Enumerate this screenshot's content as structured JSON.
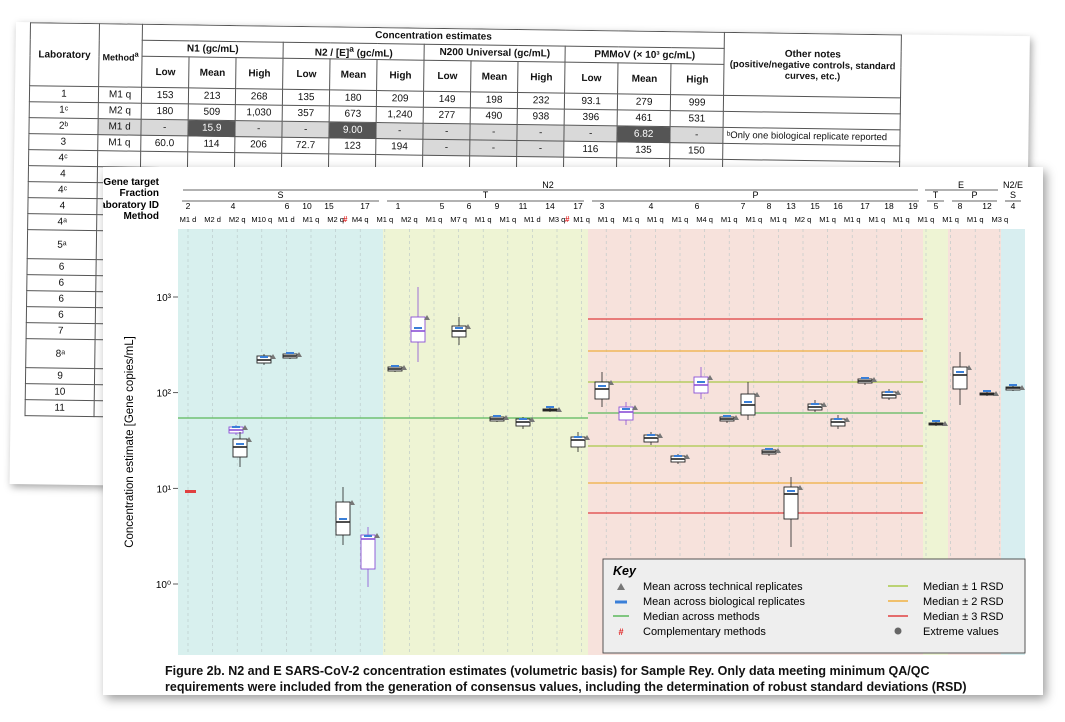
{
  "table": {
    "header": {
      "laboratory": "Laboratory",
      "method": "Method",
      "method_sup": "a",
      "concentration_estimates": "Concentration estimates",
      "groups": [
        "N1 (gc/mL)",
        "N2 / [E]",
        "N200 Universal (gc/mL)",
        "PMMoV (× 10³ gc/mL)"
      ],
      "n2_sup": "a",
      "n2_units": " (gc/mL)",
      "sub": [
        "Low",
        "Mean",
        "High"
      ],
      "other_notes": "Other notes",
      "other_notes_detail": "(positive/negative controls, standard curves, etc.)"
    },
    "rows": [
      {
        "lab": "1",
        "method": "M1 q",
        "n1": [
          "153",
          "213",
          "268"
        ],
        "n2": [
          "135",
          "180",
          "209"
        ],
        "n200": [
          "149",
          "198",
          "232"
        ],
        "pmmov": [
          "93.1",
          "279",
          "999"
        ],
        "note": ""
      },
      {
        "lab": "1ᶜ",
        "method": "M2 q",
        "n1": [
          "180",
          "509",
          "1,030"
        ],
        "n2": [
          "357",
          "673",
          "1,240"
        ],
        "n200": [
          "277",
          "490",
          "938"
        ],
        "pmmov": [
          "396",
          "461",
          "531"
        ],
        "note": ""
      },
      {
        "lab": "2ᵇ",
        "method": "M1 d",
        "n1": [
          "-",
          "15.9",
          "-"
        ],
        "n2": [
          "-",
          "9.00",
          "-"
        ],
        "n200": [
          "-",
          "-",
          "-"
        ],
        "pmmov": [
          "-",
          "6.82",
          "-"
        ],
        "note": "ᵇOnly one biological replicate reported",
        "grey": true
      },
      {
        "lab": "3",
        "method": "M1 q",
        "n1": [
          "60.0",
          "114",
          "206"
        ],
        "n2": [
          "72.7",
          "123",
          "194"
        ],
        "n200": [
          "-",
          "-",
          "-"
        ],
        "pmmov": [
          "116",
          "135",
          "150"
        ],
        "note": ""
      }
    ],
    "more_labs": [
      "4ᶜ",
      "4",
      "4ᶜ",
      "4",
      "4ᵃ",
      "5ᵃ",
      "6",
      "6",
      "6",
      "6",
      "7",
      "8ᵃ",
      "9",
      "10",
      "11"
    ]
  },
  "figure": {
    "row_labels": [
      "Gene target",
      "Fraction",
      "Laboratory ID",
      "Method"
    ],
    "gene_targets": [
      "N2",
      "E",
      "N2/E"
    ],
    "fractions": [
      "S",
      "T",
      "P",
      "E",
      "T",
      "P",
      "S"
    ],
    "lab_ids": [
      "2",
      "4",
      "6",
      "10",
      "15",
      "17",
      "1",
      "5",
      "6",
      "9",
      "11",
      "14",
      "17",
      "3",
      "4",
      "6",
      "7",
      "8",
      "13",
      "15",
      "16",
      "17",
      "18",
      "19",
      "5",
      "8",
      "12",
      "4"
    ],
    "methods": [
      "M1 d",
      "M2 d",
      "M2 q",
      "M10 q",
      "M1 d",
      "M1 q",
      "M2 q",
      "M4 q",
      "M1 q",
      "M2 q",
      "M1 q",
      "M7 q",
      "M1 q",
      "M1 q",
      "M1 d",
      "M3 q",
      "M1 q",
      "M1 q",
      "M1 q",
      "M1 q",
      "M1 q",
      "M4 q",
      "M1 q",
      "M1 q",
      "M1 q",
      "M2 q",
      "M1 q",
      "M1 q",
      "M1 q",
      "M1 q",
      "M1 q",
      "M1 q",
      "M1 q",
      "M3 q"
    ],
    "complementary_mark": "#",
    "y_label": "Concentration estimate [Gene copies/mL]",
    "y_ticks": [
      "10⁰",
      "10¹",
      "10²",
      "10³"
    ],
    "key": {
      "title": "Key",
      "items": [
        {
          "label": "Mean across technical replicates",
          "symbol": "triangle"
        },
        {
          "label": "Mean across biological replicates",
          "symbol": "blue-dash"
        },
        {
          "label": "Median across methods",
          "symbol": "green-line"
        },
        {
          "label": "Complementary methods",
          "symbol": "red-hash"
        },
        {
          "label": "Median ± 1 RSD",
          "symbol": "olive-line"
        },
        {
          "label": "Median ± 2 RSD",
          "symbol": "orange-line"
        },
        {
          "label": "Median ± 3 RSD",
          "symbol": "red-line"
        },
        {
          "label": "Extreme values",
          "symbol": "grey-dot"
        }
      ]
    },
    "colors": {
      "S": "#d8f0ee",
      "T": "#eef4d4",
      "P": "#f7e2dc",
      "E": "#f7e2dc",
      "N2E": "#d8eef0",
      "median": "#5cb85c",
      "rsd1": "#a8c84a",
      "rsd2": "#f0b040",
      "rsd3": "#e04040",
      "bio": "#3a7fd8"
    },
    "caption_line1": "Figure 2b. N2 and E SARS-CoV-2 concentration estimates (volumetric basis) for Sample Rey. Only data meeting minimum QA/QC",
    "caption_line2": "requirements were included from the generation of consensus values, including the determination of robust standard deviations (RSD)"
  }
}
